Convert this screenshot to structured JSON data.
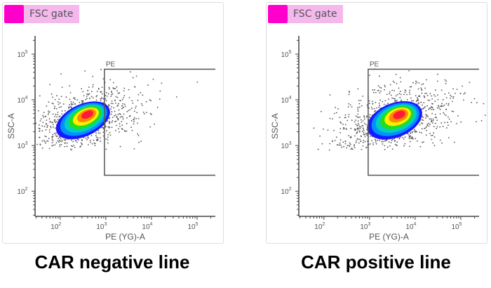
{
  "chart_data": [
    {
      "type": "scatter",
      "gate_tag": "FSC gate",
      "gate_color": "#ff00cc",
      "caption": "CAR negative line",
      "xlabel": "PE (YG)-A",
      "ylabel": "SSC-A",
      "x_scale": "log",
      "y_scale": "log",
      "xlim_log10": [
        1.45,
        5.4
      ],
      "ylim_log10": [
        1.45,
        5.4
      ],
      "x_ticks": [
        {
          "exp": "2",
          "v": 2
        },
        {
          "exp": "3",
          "v": 3
        },
        {
          "exp": "4",
          "v": 4
        },
        {
          "exp": "5",
          "v": 5
        }
      ],
      "y_ticks": [
        {
          "exp": "2",
          "v": 2
        },
        {
          "exp": "3",
          "v": 3
        },
        {
          "exp": "4",
          "v": 4
        },
        {
          "exp": "5",
          "v": 5
        }
      ],
      "gate": {
        "label": "PE",
        "x_log10": [
          2.97,
          5.4
        ],
        "y_log10": [
          2.35,
          4.67
        ]
      },
      "population": {
        "center_log10": [
          2.5,
          3.55
        ],
        "spread_log10": [
          0.55,
          0.28
        ],
        "tilt_deg": -25,
        "points": 900
      }
    },
    {
      "type": "scatter",
      "gate_tag": "FSC gate",
      "gate_color": "#ff00cc",
      "caption": "CAR positive line",
      "xlabel": "PE (YG)-A",
      "ylabel": "SSC-A",
      "x_scale": "log",
      "y_scale": "log",
      "xlim_log10": [
        1.45,
        5.4
      ],
      "ylim_log10": [
        1.45,
        5.4
      ],
      "x_ticks": [
        {
          "exp": "2",
          "v": 2
        },
        {
          "exp": "3",
          "v": 3
        },
        {
          "exp": "4",
          "v": 4
        },
        {
          "exp": "5",
          "v": 5
        }
      ],
      "y_ticks": [
        {
          "exp": "2",
          "v": 2
        },
        {
          "exp": "3",
          "v": 3
        },
        {
          "exp": "4",
          "v": 4
        },
        {
          "exp": "5",
          "v": 5
        }
      ],
      "gate": {
        "label": "PE",
        "x_log10": [
          2.97,
          5.4
        ],
        "y_log10": [
          2.35,
          4.67
        ]
      },
      "population": {
        "center_log10": [
          3.55,
          3.55
        ],
        "spread_log10": [
          0.55,
          0.3
        ],
        "tilt_deg": -22,
        "points": 900
      }
    }
  ],
  "density_colors": [
    "#1a1aff",
    "#0090ff",
    "#00d0c0",
    "#22dd22",
    "#ffee00",
    "#ff8800",
    "#ff1a3a"
  ]
}
